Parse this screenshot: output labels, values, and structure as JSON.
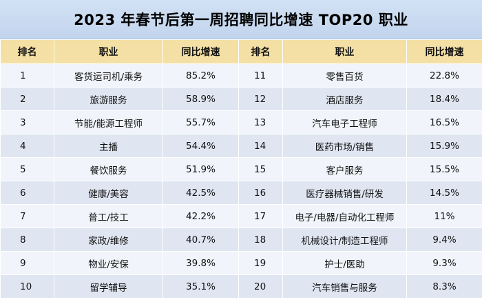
{
  "title": "2023 年春节后第一周招聘同比增速 TOP20 职业",
  "headers": [
    "排名",
    "职业",
    "同比增速",
    "排名",
    "职业",
    "同比增速"
  ],
  "rows": [
    {
      "rank1": "1",
      "job1": "客货运司机/乘务",
      "pct1": "85.2%",
      "rank2": "11",
      "job2": "零售百货",
      "pct2": "22.8%"
    },
    {
      "rank1": "2",
      "job1": "旅游服务",
      "pct1": "58.9%",
      "rank2": "12",
      "job2": "酒店服务",
      "pct2": "18.4%"
    },
    {
      "rank1": "3",
      "job1": "节能/能源工程师",
      "pct1": "55.7%",
      "rank2": "13",
      "job2": "汽车电子工程师",
      "pct2": "16.5%"
    },
    {
      "rank1": "4",
      "job1": "主播",
      "pct1": "54.4%",
      "rank2": "14",
      "job2": "医药市场/销售",
      "pct2": "15.9%"
    },
    {
      "rank1": "5",
      "job1": "餐饮服务",
      "pct1": "51.9%",
      "rank2": "15",
      "job2": "客户服务",
      "pct2": "15.5%"
    },
    {
      "rank1": "6",
      "job1": "健康/美容",
      "pct1": "42.5%",
      "rank2": "16",
      "job2": "医疗器械销售/研发",
      "pct2": "14.5%"
    },
    {
      "rank1": "7",
      "job1": "普工/技工",
      "pct1": "42.2%",
      "rank2": "17",
      "job2": "电子/电器/自动化工程师",
      "pct2": "11%"
    },
    {
      "rank1": "8",
      "job1": "家政/维修",
      "pct1": "40.7%",
      "rank2": "18",
      "job2": "机械设计/制造工程师",
      "pct2": "9.4%"
    },
    {
      "rank1": "9",
      "job1": "物业/安保",
      "pct1": "39.8%",
      "rank2": "19",
      "job2": "护士/医助",
      "pct2": "9.3%"
    },
    {
      "rank1": "10",
      "job1": "留学辅导",
      "pct1": "35.1%",
      "rank2": "20",
      "job2": "汽车销售与服务",
      "pct2": "8.3%"
    }
  ]
}
